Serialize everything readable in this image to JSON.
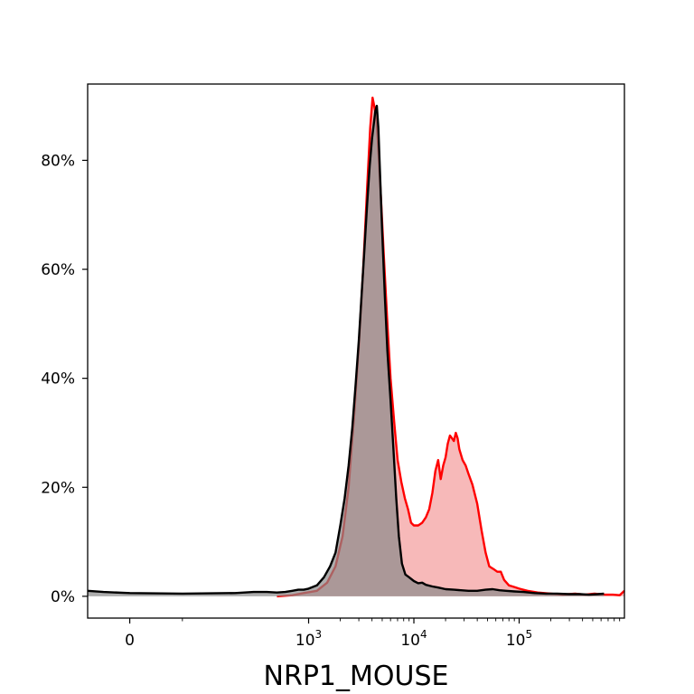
{
  "chart_data": {
    "type": "area",
    "title": "",
    "xlabel": "NRP1_MOUSE",
    "ylabel": "",
    "x_scale": "symlog",
    "x_ticks": [
      {
        "value": 0,
        "base": "0",
        "exp": ""
      },
      {
        "value": 1000,
        "base": "10",
        "exp": "3"
      },
      {
        "value": 10000,
        "base": "10",
        "exp": "4"
      },
      {
        "value": 100000,
        "base": "10",
        "exp": "5"
      }
    ],
    "xlim": [
      -80,
      1000000
    ],
    "ylim": [
      -4,
      94
    ],
    "y_ticks": [
      {
        "value": 0,
        "label": "0%"
      },
      {
        "value": 20,
        "label": "20%"
      },
      {
        "value": 40,
        "label": "40%"
      },
      {
        "value": 60,
        "label": "60%"
      },
      {
        "value": 80,
        "label": "80%"
      }
    ],
    "series": [
      {
        "color": "#ff0000",
        "fill": "#f08080",
        "points": [
          [
            500,
            0.0
          ],
          [
            700,
            0.2
          ],
          [
            900,
            0.6
          ],
          [
            1200,
            1.0
          ],
          [
            1500,
            2.5
          ],
          [
            1800,
            5.5
          ],
          [
            2100,
            11
          ],
          [
            2400,
            20
          ],
          [
            2700,
            33
          ],
          [
            3000,
            46
          ],
          [
            3300,
            60
          ],
          [
            3600,
            75
          ],
          [
            3850,
            86
          ],
          [
            4050,
            91.5
          ],
          [
            4200,
            90
          ],
          [
            4400,
            88
          ],
          [
            4600,
            82
          ],
          [
            4900,
            72
          ],
          [
            5200,
            62
          ],
          [
            5600,
            50
          ],
          [
            6000,
            40
          ],
          [
            6500,
            32
          ],
          [
            7000,
            25
          ],
          [
            7600,
            21
          ],
          [
            8200,
            18
          ],
          [
            8800,
            16
          ],
          [
            9400,
            13.5
          ],
          [
            10000,
            13
          ],
          [
            11000,
            13
          ],
          [
            12000,
            13.5
          ],
          [
            13000,
            14.5
          ],
          [
            14000,
            16
          ],
          [
            15000,
            19
          ],
          [
            16000,
            23
          ],
          [
            17000,
            25
          ],
          [
            18000,
            21.5
          ],
          [
            19000,
            24
          ],
          [
            20000,
            25.5
          ],
          [
            21000,
            28
          ],
          [
            22000,
            29.5
          ],
          [
            23000,
            29
          ],
          [
            24000,
            28.5
          ],
          [
            25000,
            30
          ],
          [
            26000,
            29
          ],
          [
            27000,
            27
          ],
          [
            29000,
            25
          ],
          [
            31000,
            24
          ],
          [
            33000,
            22.5
          ],
          [
            36000,
            20.5
          ],
          [
            40000,
            17
          ],
          [
            44000,
            12
          ],
          [
            48000,
            8
          ],
          [
            52000,
            5.5
          ],
          [
            57000,
            5
          ],
          [
            62000,
            4.5
          ],
          [
            67000,
            4.5
          ],
          [
            72000,
            3
          ],
          [
            80000,
            2
          ],
          [
            90000,
            1.7
          ],
          [
            100000,
            1.4
          ],
          [
            120000,
            1.0
          ],
          [
            150000,
            0.7
          ],
          [
            200000,
            0.5
          ],
          [
            260000,
            0.3
          ],
          [
            340000,
            0.5
          ],
          [
            420000,
            0.3
          ],
          [
            520000,
            0.5
          ],
          [
            650000,
            0.3
          ],
          [
            780000,
            0.3
          ],
          [
            900000,
            0.2
          ],
          [
            1000000,
            1.0
          ]
        ]
      },
      {
        "color": "#000000",
        "fill": "#8a8a8a",
        "points": [
          [
            -80,
            1.0
          ],
          [
            -50,
            0.8
          ],
          [
            0,
            0.6
          ],
          [
            100,
            0.5
          ],
          [
            200,
            0.6
          ],
          [
            300,
            0.8
          ],
          [
            400,
            0.8
          ],
          [
            500,
            0.7
          ],
          [
            600,
            0.8
          ],
          [
            700,
            1.0
          ],
          [
            800,
            1.2
          ],
          [
            900,
            1.2
          ],
          [
            1000,
            1.4
          ],
          [
            1200,
            2.0
          ],
          [
            1400,
            3.5
          ],
          [
            1600,
            5.5
          ],
          [
            1800,
            8
          ],
          [
            2000,
            13
          ],
          [
            2200,
            18
          ],
          [
            2400,
            24
          ],
          [
            2600,
            31
          ],
          [
            2800,
            39
          ],
          [
            3000,
            47
          ],
          [
            3200,
            56
          ],
          [
            3400,
            64
          ],
          [
            3600,
            72
          ],
          [
            3800,
            79
          ],
          [
            4000,
            84
          ],
          [
            4150,
            86.5
          ],
          [
            4300,
            89
          ],
          [
            4450,
            90
          ],
          [
            4600,
            86
          ],
          [
            4800,
            76
          ],
          [
            5000,
            67
          ],
          [
            5300,
            55
          ],
          [
            5600,
            45
          ],
          [
            6000,
            36
          ],
          [
            6400,
            27
          ],
          [
            6800,
            18
          ],
          [
            7200,
            11
          ],
          [
            7700,
            6
          ],
          [
            8300,
            4
          ],
          [
            9000,
            3.5
          ],
          [
            10000,
            2.8
          ],
          [
            11000,
            2.4
          ],
          [
            12000,
            2.5
          ],
          [
            13000,
            2.1
          ],
          [
            15000,
            1.8
          ],
          [
            17000,
            1.6
          ],
          [
            20000,
            1.3
          ],
          [
            24000,
            1.2
          ],
          [
            28000,
            1.1
          ],
          [
            33000,
            1.0
          ],
          [
            40000,
            1.0
          ],
          [
            48000,
            1.2
          ],
          [
            56000,
            1.3
          ],
          [
            65000,
            1.1
          ],
          [
            75000,
            1.0
          ],
          [
            90000,
            0.9
          ],
          [
            110000,
            0.8
          ],
          [
            140000,
            0.6
          ],
          [
            180000,
            0.5
          ],
          [
            230000,
            0.5
          ],
          [
            300000,
            0.4
          ],
          [
            380000,
            0.4
          ],
          [
            460000,
            0.3
          ],
          [
            560000,
            0.4
          ],
          [
            640000,
            0.5
          ]
        ]
      }
    ]
  }
}
